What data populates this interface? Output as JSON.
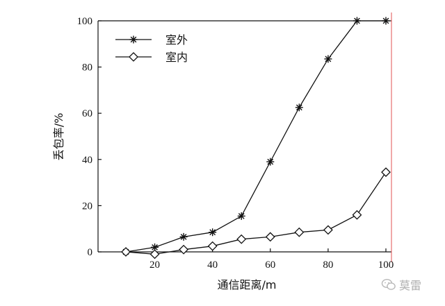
{
  "chart_data": {
    "type": "line",
    "xlabel": "通信距离/m",
    "ylabel": "丢包率/%",
    "xlim": [
      0,
      100
    ],
    "ylim": [
      0,
      100
    ],
    "xticks": [
      20,
      40,
      60,
      80,
      100
    ],
    "yticks": [
      0,
      20,
      40,
      60,
      80,
      100
    ],
    "grid": false,
    "legend_position": "top-left",
    "series": [
      {
        "name": "室外",
        "marker": "star",
        "color": "#111111",
        "x": [
          10,
          20,
          30,
          40,
          50,
          60,
          70,
          80,
          90,
          100
        ],
        "y": [
          0,
          2,
          6.5,
          8.5,
          15.5,
          39,
          62.5,
          83.5,
          100,
          100
        ]
      },
      {
        "name": "室内",
        "marker": "diamond",
        "color": "#111111",
        "x": [
          10,
          20,
          30,
          40,
          50,
          60,
          70,
          80,
          90,
          100
        ],
        "y": [
          0,
          -1,
          1,
          2.5,
          5.5,
          6.5,
          8.5,
          9.5,
          16,
          34.5
        ]
      }
    ]
  },
  "watermark": {
    "text": "莫雷",
    "icon": "wechat-icon"
  }
}
